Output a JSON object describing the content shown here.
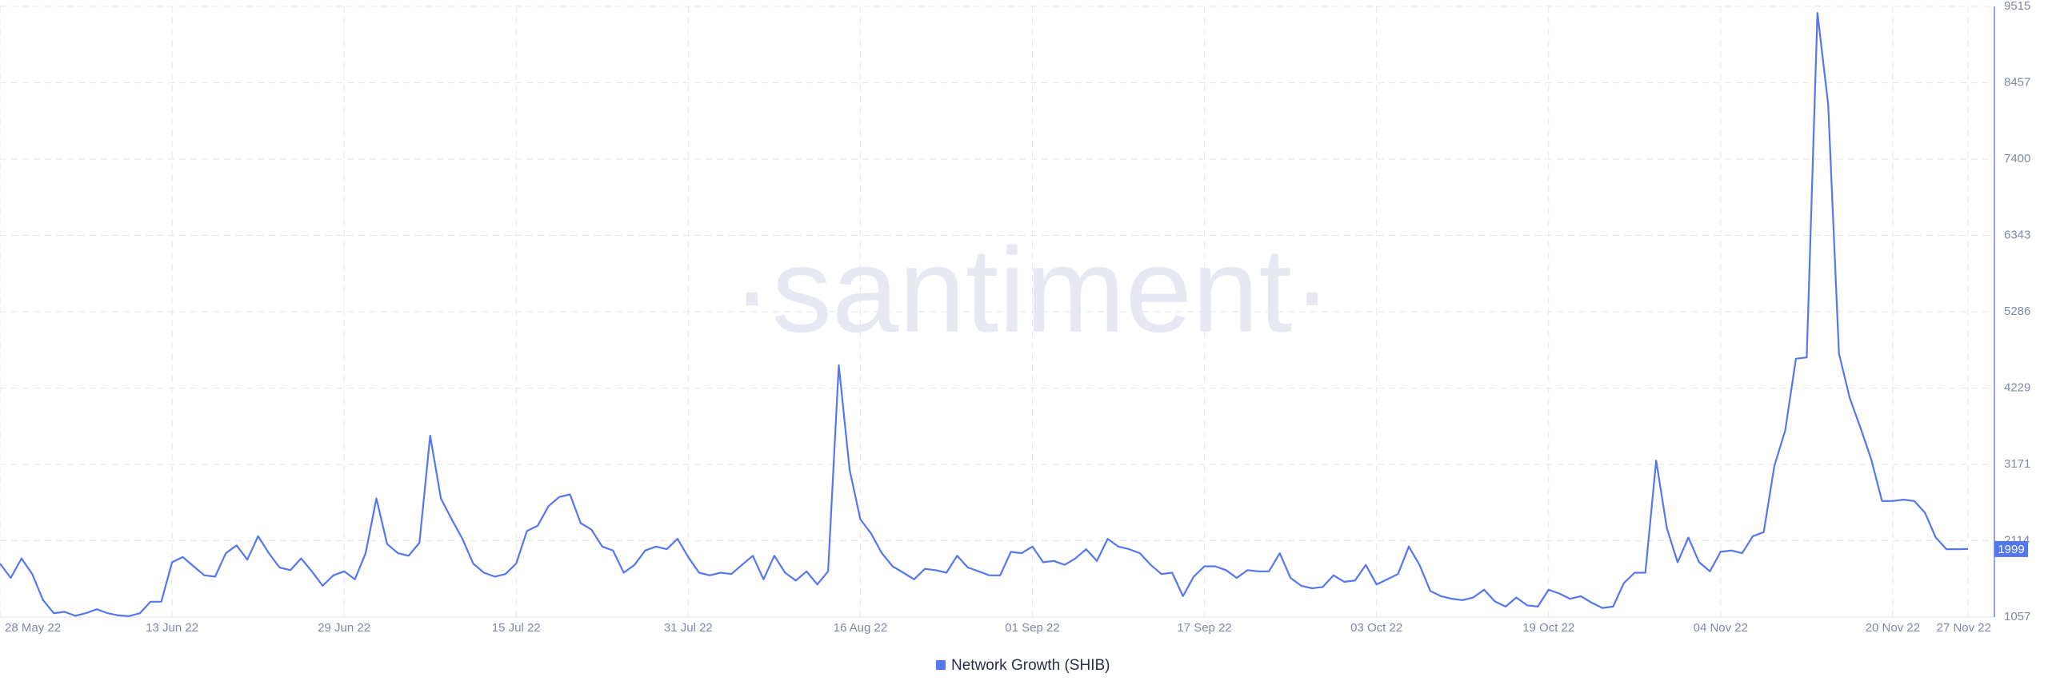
{
  "chart_data": {
    "type": "line",
    "watermark": "·santiment·",
    "x": [
      "2022-05-28",
      "2022-05-29",
      "2022-05-30",
      "2022-05-31",
      "2022-06-01",
      "2022-06-02",
      "2022-06-03",
      "2022-06-04",
      "2022-06-05",
      "2022-06-06",
      "2022-06-07",
      "2022-06-08",
      "2022-06-09",
      "2022-06-10",
      "2022-06-11",
      "2022-06-12",
      "2022-06-13",
      "2022-06-14",
      "2022-06-15",
      "2022-06-16",
      "2022-06-17",
      "2022-06-18",
      "2022-06-19",
      "2022-06-20",
      "2022-06-21",
      "2022-06-22",
      "2022-06-23",
      "2022-06-24",
      "2022-06-25",
      "2022-06-26",
      "2022-06-27",
      "2022-06-28",
      "2022-06-29",
      "2022-06-30",
      "2022-07-01",
      "2022-07-02",
      "2022-07-03",
      "2022-07-04",
      "2022-07-05",
      "2022-07-06",
      "2022-07-07",
      "2022-07-08",
      "2022-07-09",
      "2022-07-10",
      "2022-07-11",
      "2022-07-12",
      "2022-07-13",
      "2022-07-14",
      "2022-07-15",
      "2022-07-16",
      "2022-07-17",
      "2022-07-18",
      "2022-07-19",
      "2022-07-20",
      "2022-07-21",
      "2022-07-22",
      "2022-07-23",
      "2022-07-24",
      "2022-07-25",
      "2022-07-26",
      "2022-07-27",
      "2022-07-28",
      "2022-07-29",
      "2022-07-30",
      "2022-07-31",
      "2022-08-01",
      "2022-08-02",
      "2022-08-03",
      "2022-08-04",
      "2022-08-05",
      "2022-08-06",
      "2022-08-07",
      "2022-08-08",
      "2022-08-09",
      "2022-08-10",
      "2022-08-11",
      "2022-08-12",
      "2022-08-13",
      "2022-08-14",
      "2022-08-15",
      "2022-08-16",
      "2022-08-17",
      "2022-08-18",
      "2022-08-19",
      "2022-08-20",
      "2022-08-21",
      "2022-08-22",
      "2022-08-23",
      "2022-08-24",
      "2022-08-25",
      "2022-08-26",
      "2022-08-27",
      "2022-08-28",
      "2022-08-29",
      "2022-08-30",
      "2022-08-31",
      "2022-09-01",
      "2022-09-02",
      "2022-09-03",
      "2022-09-04",
      "2022-09-05",
      "2022-09-06",
      "2022-09-07",
      "2022-09-08",
      "2022-09-09",
      "2022-09-10",
      "2022-09-11",
      "2022-09-12",
      "2022-09-13",
      "2022-09-14",
      "2022-09-15",
      "2022-09-16",
      "2022-09-17",
      "2022-09-18",
      "2022-09-19",
      "2022-09-20",
      "2022-09-21",
      "2022-09-22",
      "2022-09-23",
      "2022-09-24",
      "2022-09-25",
      "2022-09-26",
      "2022-09-27",
      "2022-09-28",
      "2022-09-29",
      "2022-09-30",
      "2022-10-01",
      "2022-10-02",
      "2022-10-03",
      "2022-10-04",
      "2022-10-05",
      "2022-10-06",
      "2022-10-07",
      "2022-10-08",
      "2022-10-09",
      "2022-10-10",
      "2022-10-11",
      "2022-10-12",
      "2022-10-13",
      "2022-10-14",
      "2022-10-15",
      "2022-10-16",
      "2022-10-17",
      "2022-10-18",
      "2022-10-19",
      "2022-10-20",
      "2022-10-21",
      "2022-10-22",
      "2022-10-23",
      "2022-10-24",
      "2022-10-25",
      "2022-10-26",
      "2022-10-27",
      "2022-10-28",
      "2022-10-29",
      "2022-10-30",
      "2022-10-31",
      "2022-11-01",
      "2022-11-02",
      "2022-11-03",
      "2022-11-04",
      "2022-11-05",
      "2022-11-06",
      "2022-11-07",
      "2022-11-08",
      "2022-11-09",
      "2022-11-10",
      "2022-11-11",
      "2022-11-12",
      "2022-11-13",
      "2022-11-14",
      "2022-11-15",
      "2022-11-16",
      "2022-11-17",
      "2022-11-18",
      "2022-11-19",
      "2022-11-20",
      "2022-11-21",
      "2022-11-22",
      "2022-11-23",
      "2022-11-24",
      "2022-11-25",
      "2022-11-26",
      "2022-11-27"
    ],
    "series": [
      {
        "name": "Network Growth (SHIB)",
        "color": "#5477f0",
        "values": [
          1798,
          1600,
          1870,
          1653,
          1292,
          1111,
          1129,
          1075,
          1111,
          1165,
          1111,
          1080,
          1070,
          1110,
          1270,
          1270,
          1816,
          1888,
          1760,
          1635,
          1617,
          1942,
          2050,
          1852,
          2177,
          1942,
          1743,
          1707,
          1870,
          1690,
          1490,
          1635,
          1690,
          1580,
          1942,
          2700,
          2069,
          1942,
          1906,
          2087,
          3569,
          2700,
          2412,
          2141,
          1798,
          1671,
          1617,
          1653,
          1798,
          2250,
          2322,
          2593,
          2720,
          2756,
          2358,
          2268,
          2033,
          1979,
          1671,
          1780,
          1979,
          2033,
          1997,
          2141,
          1888,
          1671,
          1635,
          1671,
          1653,
          1780,
          1906,
          1580,
          1906,
          1671,
          1563,
          1690,
          1509,
          1690,
          4545,
          3099,
          2412,
          2214,
          1942,
          1760,
          1671,
          1580,
          1725,
          1707,
          1671,
          1906,
          1743,
          1690,
          1635,
          1635,
          1960,
          1942,
          2033,
          1816,
          1834,
          1780,
          1870,
          1997,
          1834,
          2141,
          2033,
          1997,
          1942,
          1780,
          1653,
          1671,
          1346,
          1617,
          1760,
          1760,
          1707,
          1600,
          1707,
          1690,
          1690,
          1942,
          1600,
          1490,
          1455,
          1473,
          1635,
          1545,
          1563,
          1780,
          1509,
          1580,
          1653,
          2033,
          1780,
          1418,
          1346,
          1310,
          1292,
          1328,
          1436,
          1274,
          1202,
          1328,
          1220,
          1202,
          1436,
          1382,
          1310,
          1346,
          1256,
          1183,
          1202,
          1527,
          1671,
          1671,
          3225,
          2286,
          1816,
          2159,
          1816,
          1690,
          1960,
          1979,
          1942,
          2177,
          2232,
          3153,
          3641,
          4635,
          4653,
          9424,
          8159,
          4707,
          4093,
          3677,
          3243,
          2665,
          2665,
          2683,
          2665,
          2503,
          2159,
          1997,
          1997,
          1999
        ]
      }
    ],
    "ylim": [
      1057,
      9515
    ],
    "yticks": [
      1057,
      2114,
      3171,
      4229,
      5286,
      6343,
      7400,
      8457,
      9515
    ],
    "xticks": [
      {
        "value": "2022-05-28",
        "label": "28 May 22"
      },
      {
        "value": "2022-06-13",
        "label": "13 Jun 22"
      },
      {
        "value": "2022-06-29",
        "label": "29 Jun 22"
      },
      {
        "value": "2022-07-15",
        "label": "15 Jul 22"
      },
      {
        "value": "2022-07-31",
        "label": "31 Jul 22"
      },
      {
        "value": "2022-08-16",
        "label": "16 Aug 22"
      },
      {
        "value": "2022-09-01",
        "label": "01 Sep 22"
      },
      {
        "value": "2022-09-17",
        "label": "17 Sep 22"
      },
      {
        "value": "2022-10-03",
        "label": "03 Oct 22"
      },
      {
        "value": "2022-10-19",
        "label": "19 Oct 22"
      },
      {
        "value": "2022-11-04",
        "label": "04 Nov 22"
      },
      {
        "value": "2022-11-20",
        "label": "20 Nov 22"
      },
      {
        "value": "2022-11-27",
        "label": "27 Nov 22"
      }
    ],
    "grid": true
  }
}
